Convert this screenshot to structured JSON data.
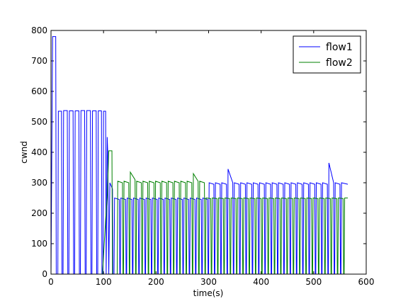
{
  "chart_data": {
    "type": "line",
    "xlabel": "time(s)",
    "ylabel": "cwnd",
    "xlim": [
      0,
      600
    ],
    "xticks": [
      0,
      100,
      200,
      300,
      400,
      500,
      600
    ],
    "ylim": [
      0,
      800
    ],
    "yticks": [
      0,
      100,
      200,
      300,
      400,
      500,
      600,
      700,
      800
    ],
    "legend": "upper right",
    "series": [
      {
        "name": "flow1",
        "color": "#0000ff",
        "x": [
          0,
          3,
          9,
          10,
          13,
          14,
          20,
          21,
          23,
          24,
          31,
          32,
          34,
          35,
          42,
          43,
          45,
          46,
          53,
          54,
          56,
          57,
          64,
          65,
          67,
          68,
          75,
          76,
          78,
          79,
          86,
          87,
          89,
          90,
          96,
          97,
          99,
          100,
          104,
          105,
          107,
          108,
          110,
          112,
          117,
          118,
          120,
          121,
          130,
          131,
          132,
          133,
          142,
          143,
          144,
          145,
          154,
          155,
          156,
          157,
          166,
          167,
          168,
          169,
          178,
          179,
          180,
          181,
          190,
          191,
          192,
          193,
          202,
          203,
          204,
          205,
          214,
          215,
          216,
          217,
          226,
          227,
          228,
          229,
          238,
          239,
          240,
          241,
          250,
          251,
          252,
          253,
          262,
          263,
          264,
          265,
          274,
          275,
          276,
          277,
          286,
          287,
          288,
          289,
          298,
          299,
          300,
          301,
          310,
          311,
          312,
          313,
          322,
          323,
          324,
          325,
          334,
          335,
          336,
          337,
          346,
          347,
          348,
          349,
          358,
          359,
          360,
          361,
          370,
          371,
          372,
          373,
          382,
          383,
          384,
          385,
          394,
          395,
          396,
          397,
          406,
          407,
          408,
          409,
          418,
          419,
          420,
          421,
          430,
          431,
          432,
          433,
          442,
          443,
          444,
          445,
          454,
          455,
          456,
          457,
          466,
          467,
          468,
          469,
          478,
          479,
          480,
          481,
          490,
          491,
          492,
          493,
          502,
          503,
          504,
          505,
          514,
          515,
          516,
          517,
          526,
          527,
          528,
          529,
          538,
          539,
          540,
          541,
          550,
          551,
          552,
          553,
          565
        ],
        "values": [
          0,
          780,
          780,
          0,
          0,
          535,
          535,
          0,
          0,
          537,
          537,
          0,
          0,
          536,
          536,
          0,
          0,
          536,
          536,
          0,
          0,
          537,
          537,
          0,
          0,
          537,
          537,
          0,
          0,
          536,
          536,
          0,
          0,
          536,
          536,
          0,
          0,
          535,
          535,
          0,
          450,
          400,
          0,
          300,
          280,
          0,
          0,
          250,
          245,
          0,
          0,
          250,
          245,
          0,
          0,
          250,
          245,
          0,
          0,
          250,
          245,
          0,
          0,
          250,
          245,
          0,
          0,
          250,
          245,
          0,
          0,
          250,
          245,
          0,
          0,
          250,
          245,
          0,
          0,
          250,
          245,
          0,
          0,
          250,
          245,
          0,
          0,
          250,
          245,
          0,
          0,
          250,
          245,
          0,
          0,
          250,
          245,
          0,
          0,
          250,
          245,
          0,
          0,
          250,
          245,
          0,
          0,
          300,
          295,
          0,
          0,
          300,
          295,
          0,
          0,
          300,
          295,
          0,
          0,
          345,
          300,
          0,
          0,
          300,
          295,
          0,
          0,
          300,
          295,
          0,
          0,
          300,
          295,
          0,
          0,
          300,
          295,
          0,
          0,
          300,
          295,
          0,
          0,
          300,
          295,
          0,
          0,
          300,
          295,
          0,
          0,
          300,
          295,
          0,
          0,
          300,
          295,
          0,
          0,
          300,
          295,
          0,
          0,
          300,
          295,
          0,
          0,
          300,
          295,
          0,
          0,
          300,
          295,
          0,
          0,
          300,
          295,
          0,
          0,
          300,
          295,
          0,
          0,
          365,
          300,
          0,
          0,
          300,
          295,
          0,
          0,
          300,
          295
        ]
      },
      {
        "name": "flow2",
        "color": "#008000",
        "x": [
          98,
          104,
          107,
          110,
          116,
          117,
          126,
          127,
          136,
          137,
          138,
          139,
          148,
          149,
          150,
          151,
          160,
          161,
          162,
          163,
          172,
          173,
          174,
          175,
          184,
          185,
          186,
          187,
          196,
          197,
          198,
          199,
          208,
          209,
          210,
          211,
          220,
          221,
          222,
          223,
          232,
          233,
          234,
          235,
          244,
          245,
          246,
          247,
          256,
          257,
          258,
          259,
          268,
          269,
          270,
          271,
          280,
          281,
          282,
          283,
          292,
          293,
          294,
          295,
          304,
          305,
          306,
          307,
          316,
          317,
          318,
          319,
          328,
          329,
          330,
          331,
          340,
          341,
          342,
          343,
          352,
          353,
          354,
          355,
          364,
          365,
          366,
          367,
          376,
          377,
          378,
          379,
          388,
          389,
          390,
          391,
          400,
          401,
          402,
          403,
          412,
          413,
          414,
          415,
          424,
          425,
          426,
          427,
          436,
          437,
          438,
          439,
          448,
          449,
          450,
          451,
          460,
          461,
          462,
          463,
          472,
          473,
          474,
          475,
          484,
          485,
          486,
          487,
          496,
          497,
          498,
          499,
          508,
          509,
          510,
          511,
          520,
          521,
          522,
          523,
          532,
          533,
          534,
          535,
          544,
          545,
          546,
          547,
          556,
          557,
          558,
          559,
          565
        ],
        "values": [
          0,
          180,
          250,
          405,
          405,
          0,
          0,
          305,
          300,
          0,
          0,
          305,
          300,
          0,
          0,
          335,
          310,
          0,
          0,
          305,
          300,
          0,
          0,
          305,
          300,
          0,
          0,
          305,
          300,
          0,
          0,
          305,
          300,
          0,
          0,
          305,
          300,
          0,
          0,
          305,
          300,
          0,
          0,
          305,
          300,
          0,
          0,
          305,
          300,
          0,
          0,
          305,
          300,
          0,
          0,
          330,
          305,
          0,
          0,
          305,
          300,
          0,
          0,
          250,
          248,
          0,
          0,
          250,
          248,
          0,
          0,
          250,
          248,
          0,
          0,
          250,
          248,
          0,
          0,
          250,
          248,
          0,
          0,
          250,
          248,
          0,
          0,
          250,
          248,
          0,
          0,
          250,
          248,
          0,
          0,
          250,
          248,
          0,
          0,
          250,
          248,
          0,
          0,
          250,
          248,
          0,
          0,
          250,
          248,
          0,
          0,
          250,
          248,
          0,
          0,
          250,
          248,
          0,
          0,
          250,
          248,
          0,
          0,
          250,
          248,
          0,
          0,
          250,
          248,
          0,
          0,
          250,
          248,
          0,
          0,
          250,
          248,
          0,
          0,
          250,
          248,
          0,
          0,
          250,
          248,
          0,
          0,
          250,
          248,
          0,
          0,
          250,
          250
        ]
      }
    ]
  }
}
